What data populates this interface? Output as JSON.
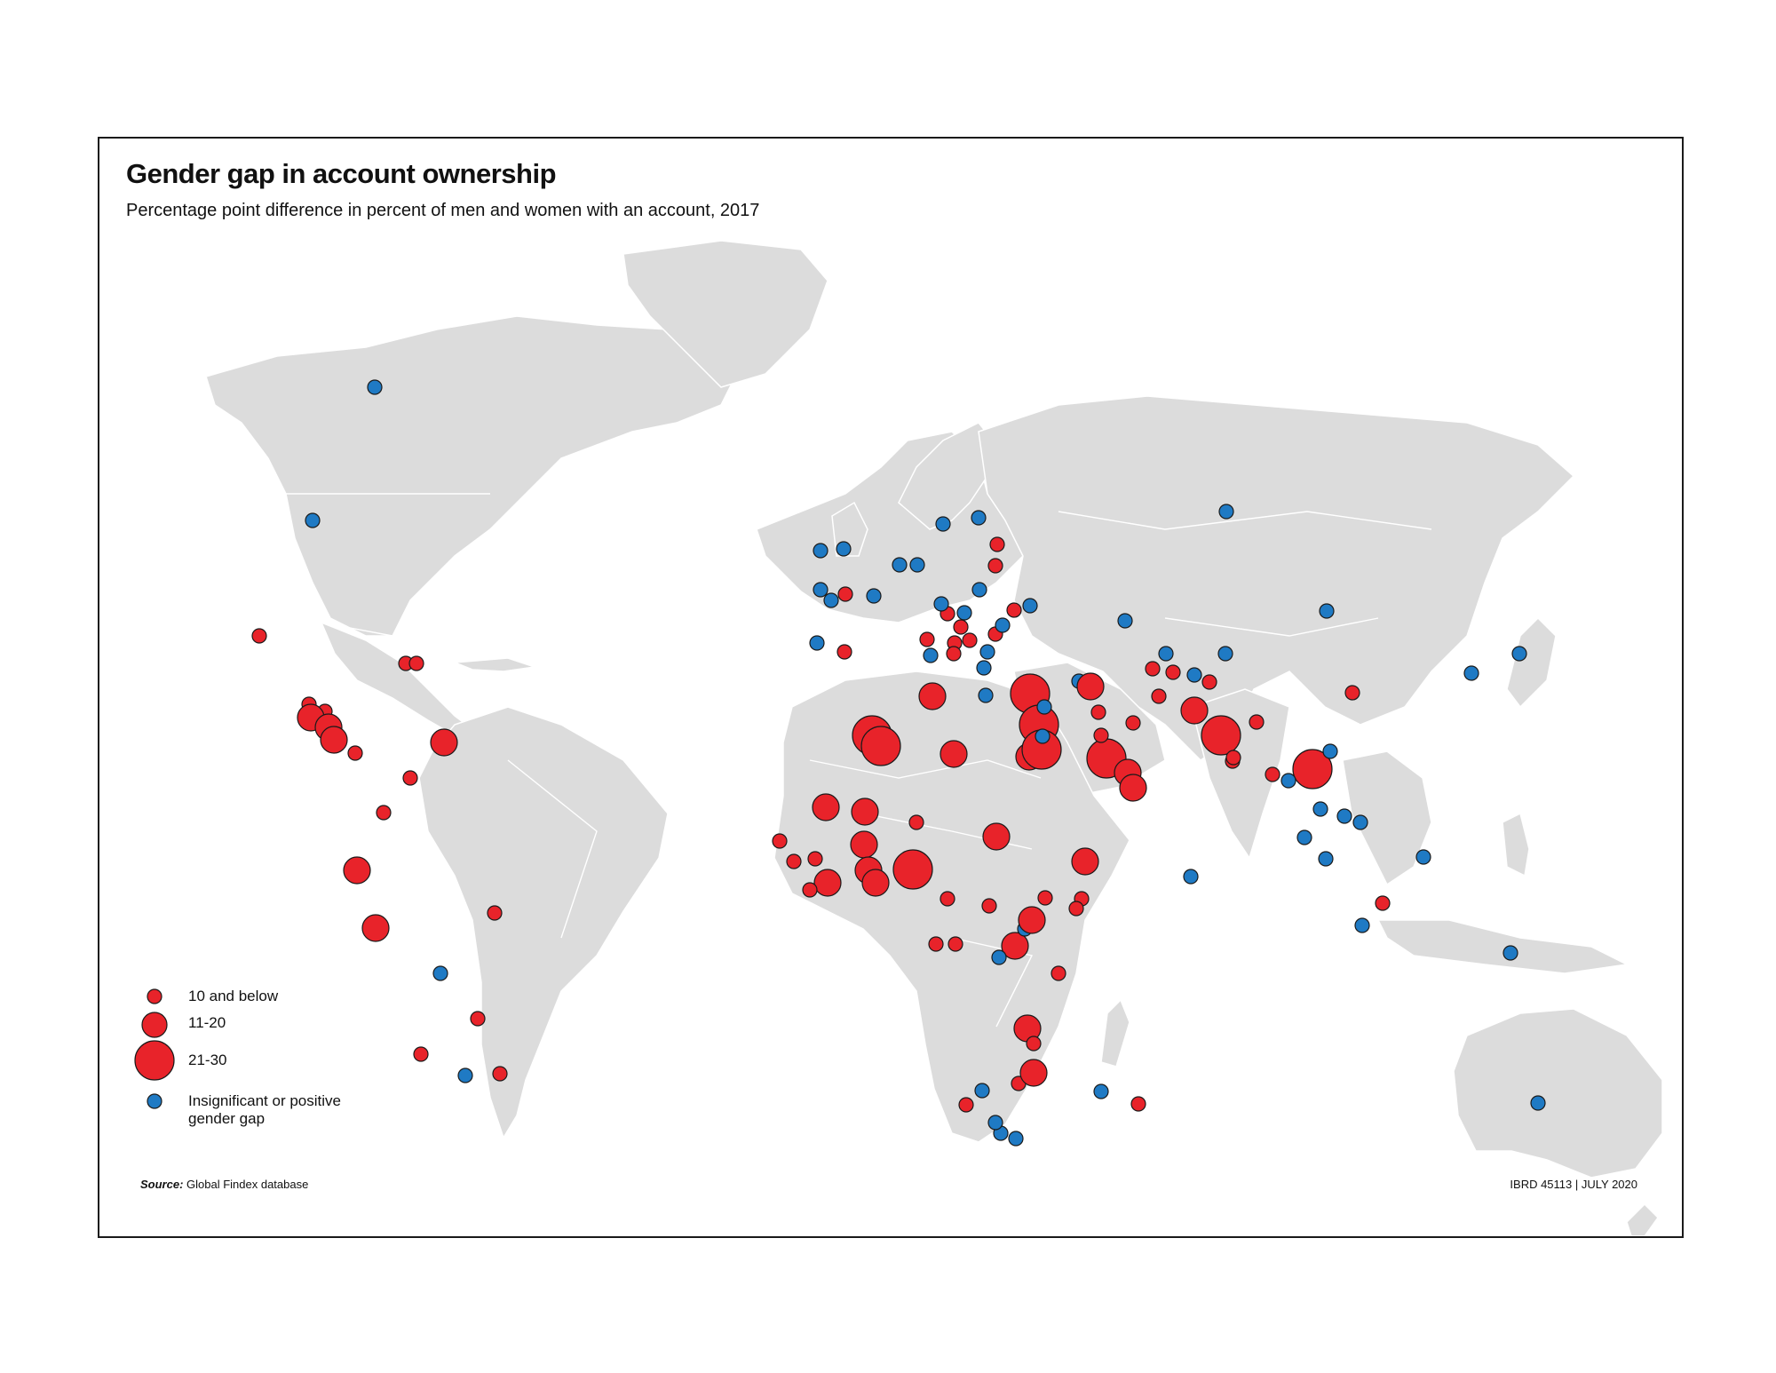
{
  "title": "Gender gap in account ownership",
  "subtitle": "Percentage point difference in percent of men and women with an account, 2017",
  "legend": {
    "items": [
      {
        "label": "10 and below",
        "category": "small",
        "color": "#e8232a"
      },
      {
        "label": "11-20",
        "category": "medium",
        "color": "#e8232a"
      },
      {
        "label": "21-30",
        "category": "large",
        "color": "#e8232a"
      },
      {
        "label_line1": "Insignificant or positive",
        "label_line2": "gender gap",
        "category": "blue",
        "color": "#1f7ac4"
      }
    ]
  },
  "source_label": "Source:",
  "source_text": "Global Findex database",
  "map_id": "IBRD 45113",
  "map_date": "JULY 2020",
  "colors": {
    "gap": "#e8232a",
    "no_gap": "#1f7ac4",
    "land": "#dcdcdc",
    "frame": "#1a1a1a"
  }
}
